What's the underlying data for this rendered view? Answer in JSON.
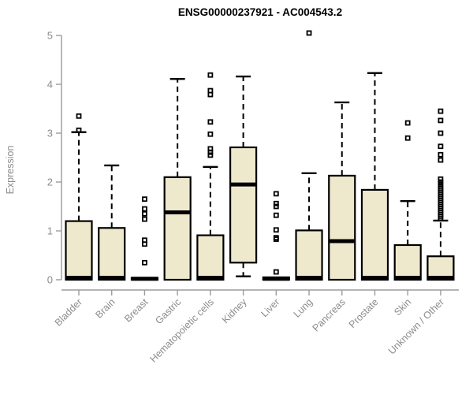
{
  "header": {
    "title": "ENSG00000237921 - AC004543.2"
  },
  "chart_data": {
    "type": "boxplot",
    "title": "ENSG00000237921 - AC004543.2",
    "xlabel": "",
    "ylabel": "Expression",
    "ylim": [
      0,
      5
    ],
    "yticks": [
      "0",
      "1",
      "2",
      "3",
      "4",
      "5"
    ],
    "grid": false,
    "legend": "none",
    "box_fill": "#EEE8CD",
    "box_stroke": "#000000",
    "axis_color": "#9b9b9b",
    "label_color": "#8c8c8c",
    "categories": [
      "Bladder",
      "Brain",
      "Breast",
      "Gastric",
      "Hematopoietic cells",
      "Kidney",
      "Liver",
      "Lung",
      "Pancreas",
      "Prostate",
      "Skin",
      "Unknown / Other"
    ],
    "series": [
      {
        "name": "Bladder",
        "q1": 0,
        "median": 0.04,
        "q3": 1.2,
        "whisker_low": 0,
        "whisker_high": 3.02,
        "outliers": [
          3.06,
          3.35
        ]
      },
      {
        "name": "Brain",
        "q1": 0,
        "median": 0.04,
        "q3": 1.06,
        "whisker_low": 0,
        "whisker_high": 2.34,
        "outliers": []
      },
      {
        "name": "Breast",
        "q1": 0,
        "median": 0.02,
        "q3": 0.04,
        "whisker_low": 0,
        "whisker_high": 0.04,
        "outliers": [
          0.35,
          0.73,
          0.81,
          1.24,
          1.35,
          1.45,
          1.65
        ]
      },
      {
        "name": "Gastric",
        "q1": 0,
        "median": 1.38,
        "q3": 2.1,
        "whisker_low": 0,
        "whisker_high": 4.11,
        "outliers": []
      },
      {
        "name": "Hematopoietic cells",
        "q1": 0,
        "median": 0.04,
        "q3": 0.91,
        "whisker_low": 0,
        "whisker_high": 2.31,
        "outliers": [
          2.55,
          2.61,
          2.68,
          2.98,
          3.23,
          3.79,
          3.87,
          4.19
        ]
      },
      {
        "name": "Kidney",
        "q1": 0.35,
        "median": 1.95,
        "q3": 2.71,
        "whisker_low": 0.07,
        "whisker_high": 4.16,
        "outliers": []
      },
      {
        "name": "Liver",
        "q1": 0,
        "median": 0.02,
        "q3": 0.05,
        "whisker_low": 0,
        "whisker_high": 0.05,
        "outliers": [
          0.16,
          0.83,
          0.86,
          1.02,
          1.32,
          1.5,
          1.56,
          1.76
        ]
      },
      {
        "name": "Lung",
        "q1": 0,
        "median": 0.04,
        "q3": 1.01,
        "whisker_low": 0,
        "whisker_high": 2.18,
        "outliers": [
          5.05
        ]
      },
      {
        "name": "Pancreas",
        "q1": 0,
        "median": 0.79,
        "q3": 2.13,
        "whisker_low": 0,
        "whisker_high": 3.63,
        "outliers": []
      },
      {
        "name": "Prostate",
        "q1": 0,
        "median": 0.04,
        "q3": 1.84,
        "whisker_low": 0,
        "whisker_high": 4.23,
        "outliers": []
      },
      {
        "name": "Skin",
        "q1": 0,
        "median": 0.04,
        "q3": 0.71,
        "whisker_low": 0,
        "whisker_high": 1.61,
        "outliers": [
          2.9,
          3.21
        ]
      },
      {
        "name": "Unknown / Other",
        "q1": 0,
        "median": 0.04,
        "q3": 0.48,
        "whisker_low": 0,
        "whisker_high": 1.21,
        "outliers": [
          1.26,
          1.3,
          1.34,
          1.38,
          1.42,
          1.46,
          1.5,
          1.54,
          1.58,
          1.62,
          1.66,
          1.7,
          1.74,
          1.78,
          1.82,
          1.86,
          1.9,
          1.95,
          2.0,
          2.06,
          2.45,
          2.56,
          2.73,
          3.0,
          3.26,
          3.45
        ]
      }
    ]
  }
}
